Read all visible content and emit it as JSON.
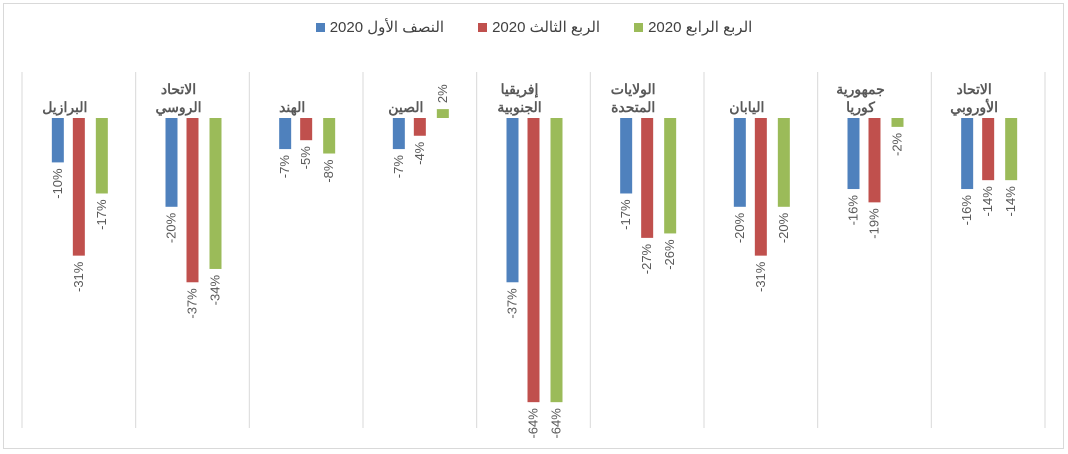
{
  "chart_data": {
    "type": "bar",
    "title": "",
    "xlabel": "",
    "ylabel": "",
    "ylim": [
      -70,
      10
    ],
    "categories": [
      [
        "البرازيل"
      ],
      [
        "الاتحاد",
        "الروسي"
      ],
      [
        "الهند"
      ],
      [
        "الصين"
      ],
      [
        "إفريقيا",
        "الجنوبية"
      ],
      [
        "الولايات",
        "المتحدة"
      ],
      [
        "اليابان"
      ],
      [
        "جمهورية",
        "كوريا"
      ],
      [
        "الاتحاد",
        "الأوروبي"
      ]
    ],
    "series": [
      {
        "name": "النصف الأول 2020",
        "color": "#4f81bd",
        "values": [
          -10,
          -20,
          -7,
          -7,
          -37,
          -17,
          -20,
          -16,
          -16
        ]
      },
      {
        "name": "الربع الثالث 2020",
        "color": "#c0504d",
        "values": [
          -31,
          -37,
          -5,
          -4,
          -64,
          -27,
          -31,
          -19,
          -14
        ]
      },
      {
        "name": "الربع الرابع 2020",
        "color": "#9bbb59",
        "values": [
          -17,
          -34,
          -8,
          2,
          -64,
          -26,
          -20,
          -2,
          -14
        ]
      }
    ],
    "value_suffix": "%",
    "legend_position": "top",
    "grid": "vertical category separators"
  }
}
